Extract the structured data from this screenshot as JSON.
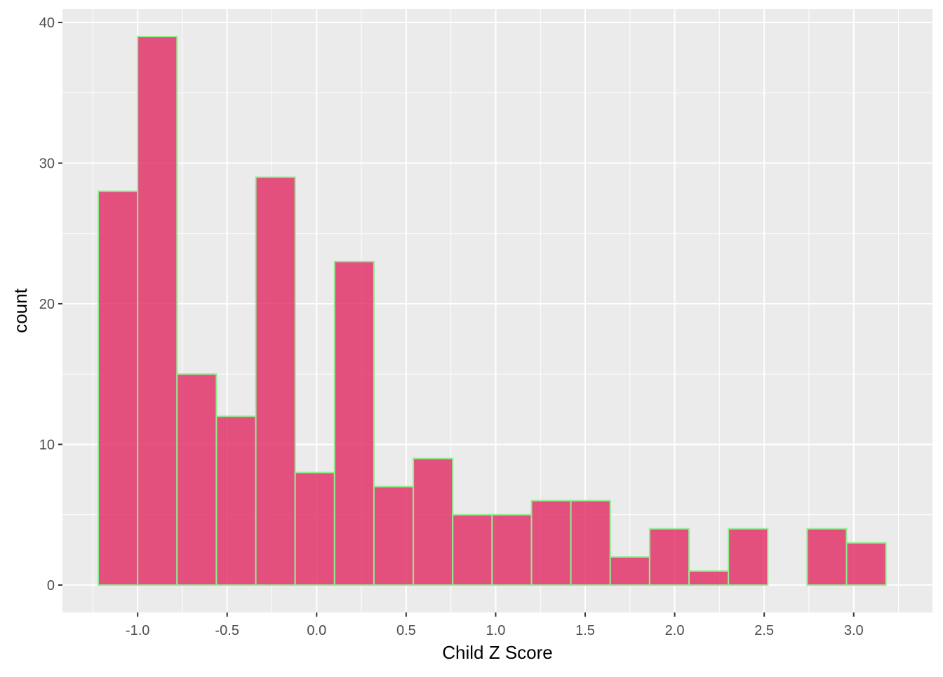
{
  "chart_data": {
    "type": "bar",
    "title": "",
    "xlabel": "Child Z Score",
    "ylabel": "count",
    "bin_edges": [
      -1.22,
      -1.0,
      -0.78,
      -0.56,
      -0.34,
      -0.12,
      0.1,
      0.32,
      0.54,
      0.76,
      0.98,
      1.2,
      1.42,
      1.64,
      1.86,
      2.08,
      2.3,
      2.52,
      2.74,
      2.96,
      3.18
    ],
    "values": [
      28,
      39,
      15,
      12,
      29,
      8,
      23,
      7,
      9,
      5,
      5,
      6,
      6,
      2,
      4,
      1,
      4,
      0,
      4,
      3
    ],
    "xlim": [
      -1.42,
      3.44
    ],
    "ylim": [
      -1.95,
      40.95
    ],
    "x_ticks": [
      -1.0,
      -0.5,
      0.0,
      0.5,
      1.0,
      1.5,
      2.0,
      2.5,
      3.0
    ],
    "x_tick_labels": [
      "-1.0",
      "-0.5",
      "0.0",
      "0.5",
      "1.0",
      "1.5",
      "2.0",
      "2.5",
      "3.0"
    ],
    "y_ticks": [
      0,
      10,
      20,
      30,
      40
    ],
    "y_tick_labels": [
      "0",
      "10",
      "20",
      "30",
      "40"
    ],
    "grid": true,
    "legend": "none",
    "colors": {
      "panel_background": "#EBEBEB",
      "grid_major": "#FFFFFF",
      "bar_fill": "#E0245E",
      "bar_outline": "#90EE90",
      "tick_mark": "#333333"
    }
  }
}
